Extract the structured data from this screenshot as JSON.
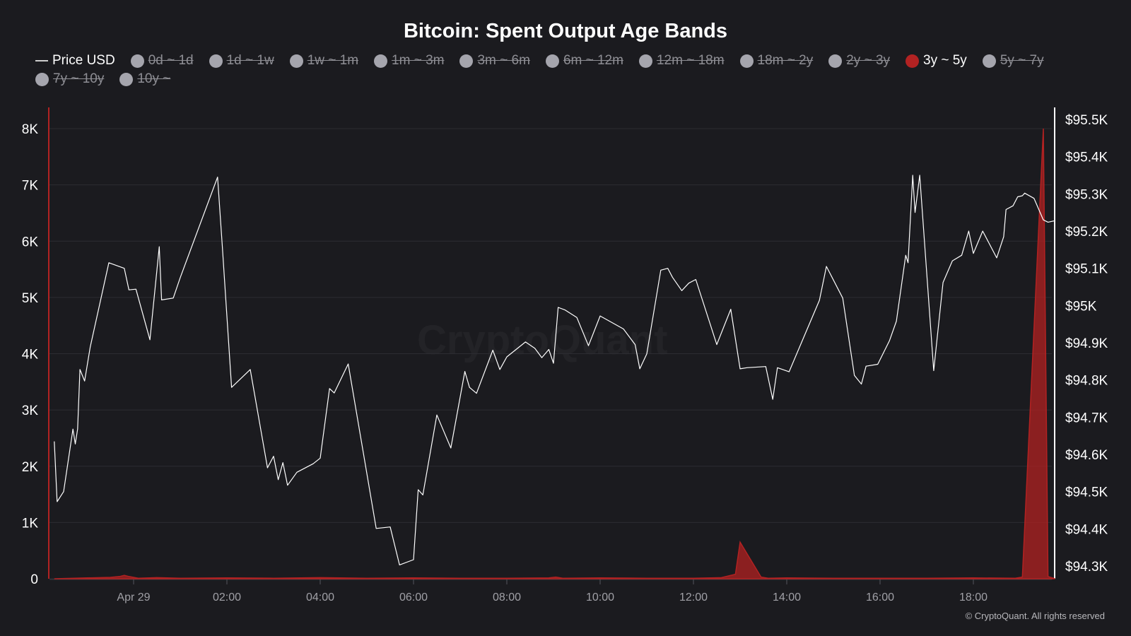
{
  "chart_data": {
    "type": "area",
    "title": "Bitcoin: Spent Output Age Bands",
    "legend": [
      {
        "label": "Price USD",
        "marker": "line",
        "color": "#ffffff",
        "active": true
      },
      {
        "label": "0d ~ 1d",
        "marker": "dot",
        "color": "#a5a5ad",
        "active": false
      },
      {
        "label": "1d ~ 1w",
        "marker": "dot",
        "color": "#a5a5ad",
        "active": false
      },
      {
        "label": "1w ~ 1m",
        "marker": "dot",
        "color": "#a5a5ad",
        "active": false
      },
      {
        "label": "1m ~ 3m",
        "marker": "dot",
        "color": "#a5a5ad",
        "active": false
      },
      {
        "label": "3m ~ 6m",
        "marker": "dot",
        "color": "#a5a5ad",
        "active": false
      },
      {
        "label": "6m ~ 12m",
        "marker": "dot",
        "color": "#a5a5ad",
        "active": false
      },
      {
        "label": "12m ~ 18m",
        "marker": "dot",
        "color": "#a5a5ad",
        "active": false
      },
      {
        "label": "18m ~ 2y",
        "marker": "dot",
        "color": "#a5a5ad",
        "active": false
      },
      {
        "label": "2y ~ 3y",
        "marker": "dot",
        "color": "#a5a5ad",
        "active": false
      },
      {
        "label": "3y ~ 5y",
        "marker": "dot",
        "color": "#b22222",
        "active": true
      },
      {
        "label": "5y ~ 7y",
        "marker": "dot",
        "color": "#a5a5ad",
        "active": false
      },
      {
        "label": "7y ~ 10y",
        "marker": "dot",
        "color": "#a5a5ad",
        "active": false
      },
      {
        "label": "10y ~",
        "marker": "dot",
        "color": "#a5a5ad",
        "active": false
      }
    ],
    "x_unit": "hours since Apr 29 00:00",
    "x_range": [
      -1.7,
      19.75
    ],
    "x_ticks": [
      {
        "value": 0,
        "label": "Apr 29"
      },
      {
        "value": 2,
        "label": "02:00"
      },
      {
        "value": 4,
        "label": "04:00"
      },
      {
        "value": 6,
        "label": "06:00"
      },
      {
        "value": 8,
        "label": "08:00"
      },
      {
        "value": 10,
        "label": "10:00"
      },
      {
        "value": 12,
        "label": "12:00"
      },
      {
        "value": 14,
        "label": "14:00"
      },
      {
        "value": 16,
        "label": "16:00"
      },
      {
        "value": 18,
        "label": "18:00"
      }
    ],
    "y_left": {
      "range": [
        0,
        8400
      ],
      "ticks": [
        {
          "value": 0,
          "label": "0"
        },
        {
          "value": 1000,
          "label": "1K"
        },
        {
          "value": 2000,
          "label": "2K"
        },
        {
          "value": 3000,
          "label": "3K"
        },
        {
          "value": 4000,
          "label": "4K"
        },
        {
          "value": 5000,
          "label": "5K"
        },
        {
          "value": 6000,
          "label": "6K"
        },
        {
          "value": 7000,
          "label": "7K"
        },
        {
          "value": 8000,
          "label": "8K"
        }
      ]
    },
    "y_right": {
      "range": [
        94225,
        95535
      ],
      "ticks": [
        {
          "value": 94300,
          "label": "$94.3K"
        },
        {
          "value": 94400,
          "label": "$94.4K"
        },
        {
          "value": 94500,
          "label": "$94.5K"
        },
        {
          "value": 94600,
          "label": "$94.6K"
        },
        {
          "value": 94700,
          "label": "$94.7K"
        },
        {
          "value": 94800,
          "label": "$94.8K"
        },
        {
          "value": 94900,
          "label": "$94.9K"
        },
        {
          "value": 95000,
          "label": "$95K"
        },
        {
          "value": 95100,
          "label": "$95.1K"
        },
        {
          "value": 95200,
          "label": "$95.2K"
        },
        {
          "value": 95300,
          "label": "$95.3K"
        },
        {
          "value": 95400,
          "label": "$95.4K"
        },
        {
          "value": 95500,
          "label": "$95.5K"
        }
      ]
    },
    "grid": true,
    "series": [
      {
        "name": "3y ~ 5y",
        "type": "area",
        "axis": "left",
        "color": "#b22222",
        "points": [
          [
            -1.7,
            0
          ],
          [
            -1.0,
            15
          ],
          [
            -0.5,
            25
          ],
          [
            -0.3,
            40
          ],
          [
            -0.2,
            60
          ],
          [
            -0.1,
            40
          ],
          [
            0.1,
            10
          ],
          [
            0.5,
            20
          ],
          [
            1.0,
            10
          ],
          [
            2.0,
            15
          ],
          [
            3.0,
            10
          ],
          [
            4.0,
            20
          ],
          [
            5.0,
            10
          ],
          [
            6.0,
            15
          ],
          [
            7.0,
            10
          ],
          [
            8.0,
            10
          ],
          [
            8.9,
            15
          ],
          [
            9.05,
            30
          ],
          [
            9.2,
            10
          ],
          [
            10.0,
            15
          ],
          [
            11.0,
            10
          ],
          [
            12.0,
            10
          ],
          [
            12.6,
            20
          ],
          [
            12.9,
            80
          ],
          [
            13.0,
            650
          ],
          [
            13.45,
            30
          ],
          [
            13.6,
            10
          ],
          [
            14.0,
            15
          ],
          [
            15.0,
            10
          ],
          [
            16.0,
            10
          ],
          [
            17.0,
            10
          ],
          [
            18.0,
            15
          ],
          [
            18.9,
            10
          ],
          [
            19.05,
            30
          ],
          [
            19.5,
            8000
          ],
          [
            19.6,
            40
          ],
          [
            19.75,
            0
          ]
        ]
      },
      {
        "name": "Price USD",
        "type": "line",
        "axis": "right",
        "color": "#ffffff",
        "points": [
          [
            -1.7,
            94635
          ],
          [
            -1.64,
            94473
          ],
          [
            -1.5,
            94500
          ],
          [
            -1.3,
            94668
          ],
          [
            -1.25,
            94628
          ],
          [
            -1.2,
            94668
          ],
          [
            -1.15,
            94828
          ],
          [
            -1.05,
            94797
          ],
          [
            -0.93,
            94888
          ],
          [
            -0.53,
            95115
          ],
          [
            -0.2,
            95100
          ],
          [
            -0.1,
            95042
          ],
          [
            0.05,
            95044
          ],
          [
            0.35,
            94908
          ],
          [
            0.55,
            95158
          ],
          [
            0.6,
            95015
          ],
          [
            0.85,
            95020
          ],
          [
            1.0,
            95075
          ],
          [
            1.8,
            95345
          ],
          [
            1.9,
            95162
          ],
          [
            2.1,
            94780
          ],
          [
            2.5,
            94828
          ],
          [
            2.87,
            94564
          ],
          [
            3.0,
            94595
          ],
          [
            3.1,
            94532
          ],
          [
            3.2,
            94578
          ],
          [
            3.3,
            94517
          ],
          [
            3.5,
            94552
          ],
          [
            3.85,
            94575
          ],
          [
            4.0,
            94590
          ],
          [
            4.2,
            94777
          ],
          [
            4.3,
            94765
          ],
          [
            4.6,
            94843
          ],
          [
            5.2,
            94401
          ],
          [
            5.5,
            94405
          ],
          [
            5.7,
            94303
          ],
          [
            6.0,
            94317
          ],
          [
            6.1,
            94505
          ],
          [
            6.2,
            94491
          ],
          [
            6.5,
            94706
          ],
          [
            6.8,
            94617
          ],
          [
            7.1,
            94823
          ],
          [
            7.2,
            94780
          ],
          [
            7.35,
            94764
          ],
          [
            7.7,
            94880
          ],
          [
            7.85,
            94828
          ],
          [
            8.0,
            94862
          ],
          [
            8.4,
            94902
          ],
          [
            8.6,
            94885
          ],
          [
            8.75,
            94860
          ],
          [
            8.9,
            94882
          ],
          [
            9.0,
            94845
          ],
          [
            9.1,
            94995
          ],
          [
            9.25,
            94988
          ],
          [
            9.5,
            94968
          ],
          [
            9.75,
            94892
          ],
          [
            10.0,
            94972
          ],
          [
            10.5,
            94937
          ],
          [
            10.75,
            94895
          ],
          [
            10.85,
            94830
          ],
          [
            11.0,
            94870
          ],
          [
            11.3,
            95095
          ],
          [
            11.45,
            95100
          ],
          [
            11.55,
            95076
          ],
          [
            11.75,
            95040
          ],
          [
            11.9,
            95060
          ],
          [
            12.05,
            95070
          ],
          [
            12.5,
            94895
          ],
          [
            12.8,
            94990
          ],
          [
            13.0,
            94830
          ],
          [
            13.15,
            94833
          ],
          [
            13.55,
            94836
          ],
          [
            13.7,
            94748
          ],
          [
            13.8,
            94833
          ],
          [
            14.05,
            94822
          ],
          [
            14.7,
            95014
          ],
          [
            14.85,
            95105
          ],
          [
            15.2,
            95020
          ],
          [
            15.45,
            94812
          ],
          [
            15.6,
            94789
          ],
          [
            15.7,
            94837
          ],
          [
            15.95,
            94842
          ],
          [
            16.2,
            94905
          ],
          [
            16.35,
            94958
          ],
          [
            16.55,
            95135
          ],
          [
            16.6,
            95115
          ],
          [
            16.7,
            95350
          ],
          [
            16.75,
            95250
          ],
          [
            16.85,
            95350
          ],
          [
            17.15,
            94825
          ],
          [
            17.35,
            95062
          ],
          [
            17.55,
            95120
          ],
          [
            17.75,
            95135
          ],
          [
            17.9,
            95200
          ],
          [
            18.0,
            95140
          ],
          [
            18.2,
            95200
          ],
          [
            18.5,
            95128
          ],
          [
            18.65,
            95185
          ],
          [
            18.7,
            95258
          ],
          [
            18.85,
            95268
          ],
          [
            18.95,
            95292
          ],
          [
            19.05,
            95295
          ],
          [
            19.1,
            95302
          ],
          [
            19.3,
            95288
          ],
          [
            19.5,
            95230
          ],
          [
            19.6,
            95224
          ],
          [
            19.75,
            95228
          ]
        ]
      }
    ],
    "watermark": "CryptoQuant"
  },
  "footer": "© CryptoQuant. All rights reserved"
}
